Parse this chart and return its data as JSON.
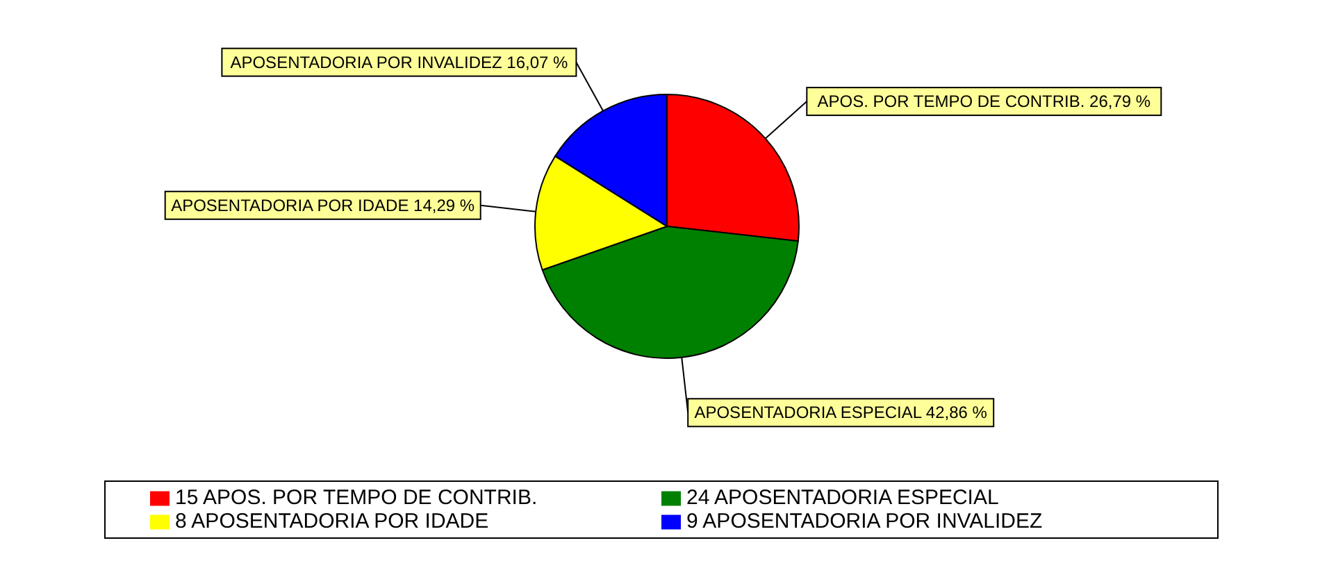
{
  "chart_data": {
    "type": "pie",
    "categories": [
      "15 APOS. POR TEMPO DE CONTRIB.",
      "24 APOSENTADORIA ESPECIAL",
      "8 APOSENTADORIA POR IDADE",
      "9 APOSENTADORIA POR INVALIDEZ"
    ],
    "values": [
      26.79,
      42.86,
      14.29,
      16.07
    ],
    "colors": [
      "#ff0000",
      "#008000",
      "#ffff00",
      "#0000ff"
    ],
    "value_labels": [
      "APOS. POR TEMPO DE CONTRIB. 26,79 %",
      "APOSENTADORIA ESPECIAL 42,86 %",
      "APOSENTADORIA POR IDADE 14,29 %",
      "APOSENTADORIA POR INVALIDEZ 16,07 %"
    ],
    "legend": "bottom"
  }
}
